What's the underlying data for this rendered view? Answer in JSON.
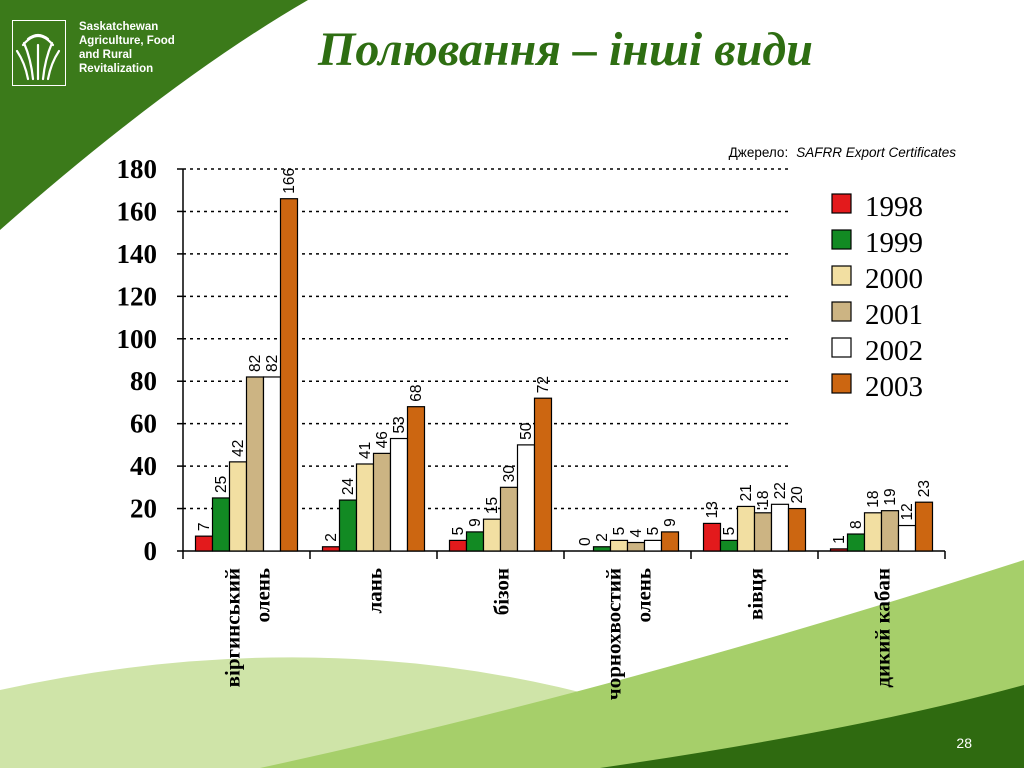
{
  "header": {
    "org_lines": [
      "Saskatchewan",
      "Agriculture, Food",
      "and Rural",
      "Revitalization"
    ],
    "title": "Полювання – інші види",
    "source_label": "Джерело:",
    "source_value": "SAFRR Export Certificates"
  },
  "footer": {
    "page_number": "28"
  },
  "colors": {
    "theme_dark_green": "#3b7a1a",
    "theme_light_green": "#a6cf6a",
    "title_green": "#2e6e12"
  },
  "chart_data": {
    "type": "bar",
    "title": "",
    "xlabel": "",
    "ylabel": "",
    "ylim": [
      0,
      180
    ],
    "yticks": [
      0,
      20,
      40,
      60,
      80,
      100,
      120,
      140,
      160,
      180
    ],
    "grid": "dotted horizontal",
    "legend_position": "right",
    "categories": [
      [
        "віргинський",
        "олень"
      ],
      [
        "лань"
      ],
      [
        "бізон"
      ],
      [
        "чорнохвостий",
        "олень"
      ],
      [
        "вівця"
      ],
      [
        "дикий кабан"
      ]
    ],
    "series": [
      {
        "name": "1998",
        "color": "#e31a1c",
        "values": [
          7,
          2,
          5,
          0,
          13,
          1
        ]
      },
      {
        "name": "1999",
        "color": "#128a23",
        "values": [
          25,
          24,
          9,
          2,
          5,
          8
        ]
      },
      {
        "name": "2000",
        "color": "#f2dfa2",
        "values": [
          42,
          41,
          15,
          5,
          21,
          18
        ]
      },
      {
        "name": "2001",
        "color": "#ccb483",
        "values": [
          82,
          46,
          30,
          4,
          18,
          19
        ]
      },
      {
        "name": "2002",
        "color": "#ffffff",
        "values": [
          82,
          53,
          50,
          5,
          22,
          12
        ]
      },
      {
        "name": "2003",
        "color": "#cc6611",
        "values": [
          166,
          68,
          72,
          9,
          20,
          23
        ]
      }
    ]
  }
}
